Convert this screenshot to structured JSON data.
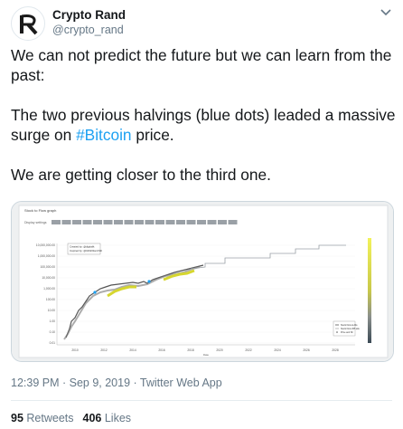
{
  "tweet": {
    "display_name": "Crypto Rand",
    "handle": "@crypto_rand",
    "text_line1": "We can not predict the future but we can learn from the past:",
    "text_line2_before": "The two previous halvings (blue dots) leaded a massive surge on ",
    "hashtag": "#Bitcoin",
    "text_line2_after": " price.",
    "text_line3": "We are getting closer to the third one.",
    "timestamp": "12:39 PM · Sep 9, 2019 · Twitter Web App",
    "retweets_count": "95",
    "retweets_label": "Retweets",
    "likes_count": "406",
    "likes_label": "Likes"
  },
  "colors": {
    "accent": "#1da1f2",
    "secondary_text": "#657786"
  },
  "chart": {
    "header_text": "Stock to Flow graph",
    "toolbar_label": "Display settings",
    "y_ticks": [
      "10,000,000.00",
      "1,000,000.00",
      "100,000.00",
      "10,000.00",
      "1,000.00",
      "100.00",
      "10.00",
      "1.00",
      "0.10",
      "0.01"
    ],
    "x_ticks": [
      "2010",
      "2012",
      "2014",
      "2016",
      "2018",
      "2020",
      "2022",
      "2024",
      "2026",
      "2028"
    ],
    "x_label": "Date",
    "created_by": "Created by: @digitalik",
    "inspired_by": "Inspired by: @100trillionUSD",
    "legend": [
      "Stock Flow & Alts",
      "Stock Flow 365 alts",
      "Price and SF"
    ]
  }
}
